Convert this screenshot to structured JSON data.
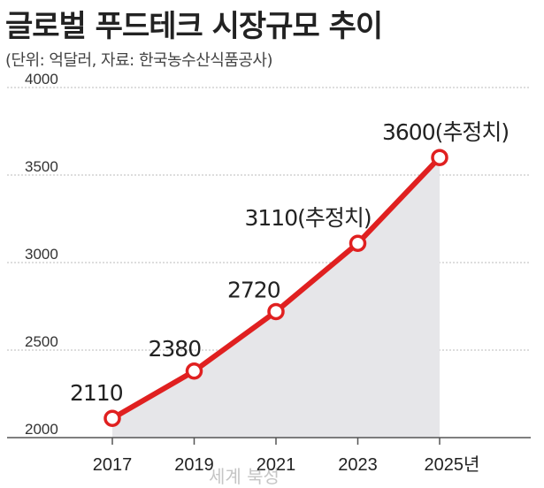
{
  "title": "글로벌 푸드테크 시장규모 추이",
  "subtitle": "(단위: 억달러, 자료: 한국농수산식품공사)",
  "watermark": "세계 북성",
  "colors": {
    "line": "#e02020",
    "fill": "#e6e6e9",
    "axis": "#555555",
    "grid": "#bbbbbb"
  },
  "chart_data": {
    "type": "area",
    "title": "글로벌 푸드테크 시장규모 추이",
    "subtitle": "(단위: 억달러, 자료: 한국농수산식품공사)",
    "x": [
      2017,
      2019,
      2021,
      2023,
      2025
    ],
    "x_tick_labels": [
      "2017",
      "2019",
      "2021",
      "2023",
      "2025년"
    ],
    "y": [
      2110,
      2380,
      2720,
      3110,
      3600
    ],
    "data_labels": [
      "2110",
      "2380",
      "2720",
      "3110(추정치)",
      "3600(추정치)"
    ],
    "ylim": [
      2000,
      4000
    ],
    "y_ticks": [
      2000,
      2500,
      3000,
      3500,
      4000
    ],
    "grid": "horizontal",
    "xlabel": "",
    "ylabel": ""
  }
}
